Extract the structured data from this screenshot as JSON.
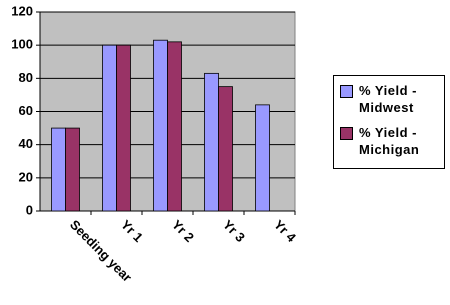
{
  "chart_data": {
    "type": "bar",
    "categories": [
      "Seeding year",
      "Yr 1",
      "Yr 2",
      "Yr 3",
      "Yr 4"
    ],
    "series": [
      {
        "name": "% Yield - Midwest",
        "color": "#9999ff",
        "values": [
          50,
          100,
          103,
          83,
          64
        ]
      },
      {
        "name": "% Yield - Michigan",
        "color": "#993366",
        "values": [
          50,
          100,
          102,
          75,
          null
        ]
      }
    ],
    "ylim": [
      0,
      120
    ],
    "yticks": [
      0,
      20,
      40,
      60,
      80,
      100,
      120
    ],
    "grid": true,
    "legend": "right"
  }
}
